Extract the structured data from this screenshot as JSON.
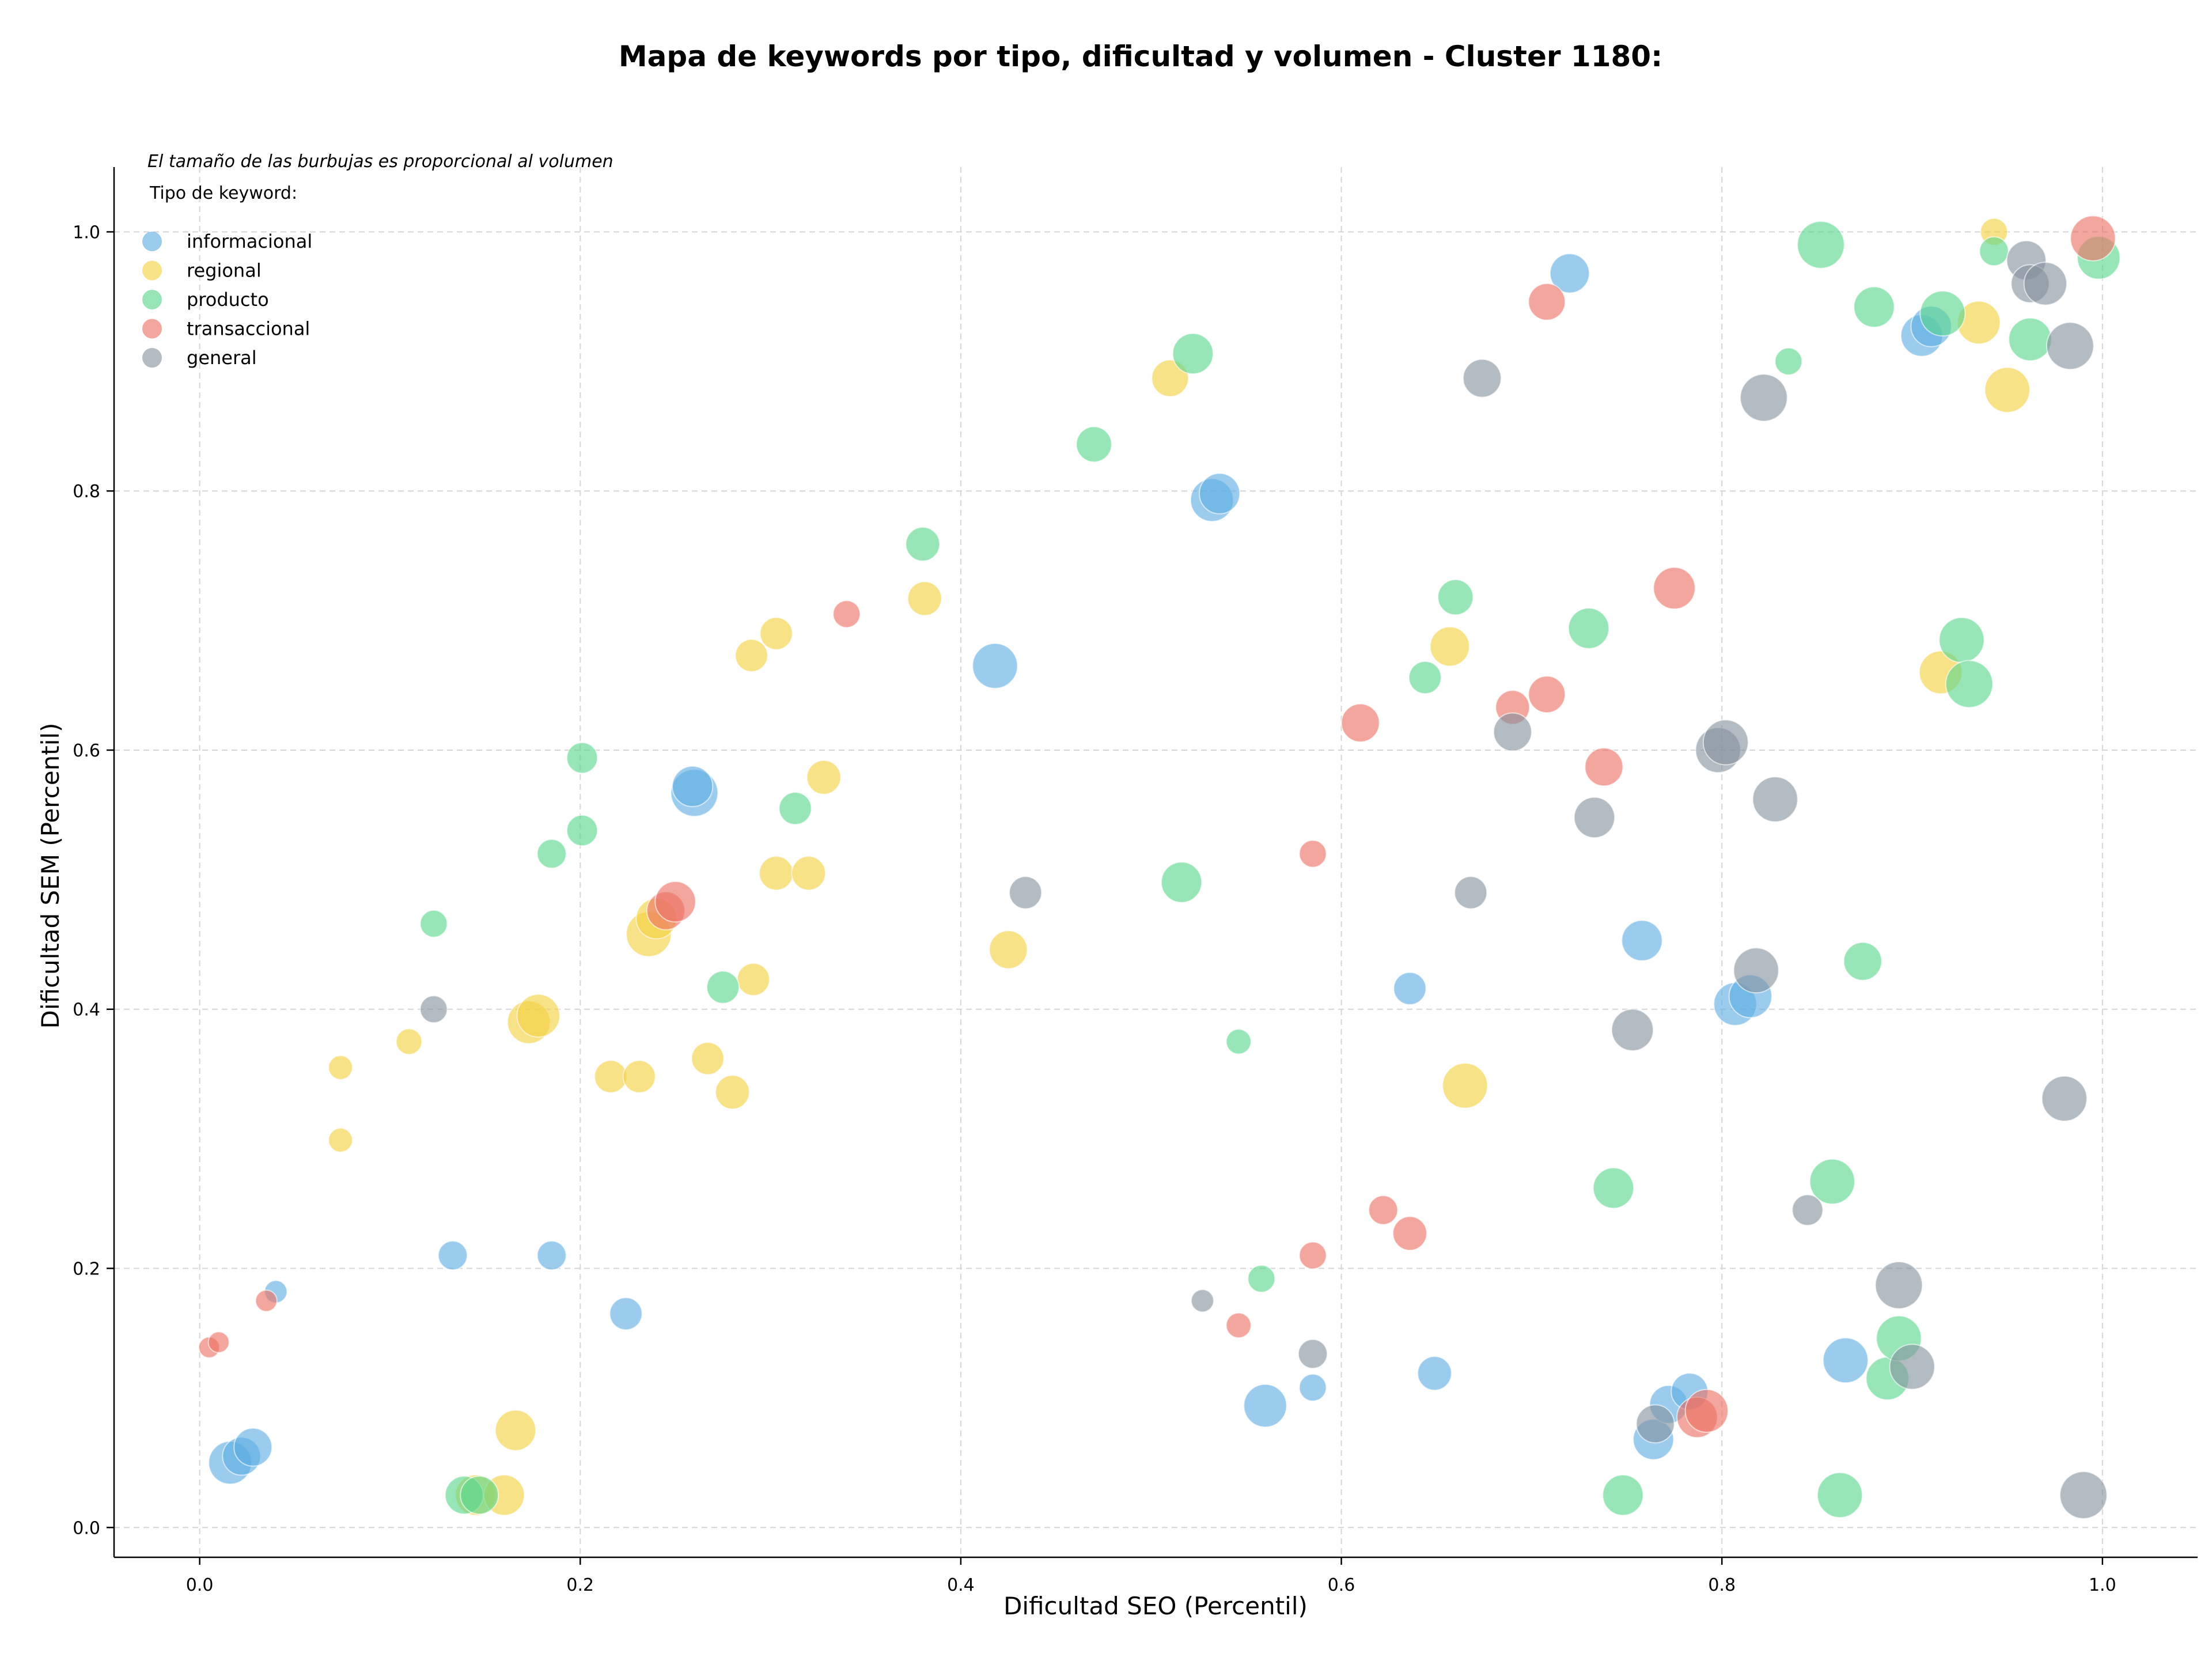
{
  "chart_data": {
    "type": "scatter",
    "title": "Mapa de keywords por tipo, dificultad y volumen - Cluster 1180:",
    "xlabel": "Dificultad SEO (Percentil)",
    "ylabel": "Dificultad SEM (Percentil)",
    "xlim": [
      -0.045,
      1.05
    ],
    "ylim": [
      -0.023,
      1.05
    ],
    "xticks": [
      "0.0",
      "0.2",
      "0.4",
      "0.6",
      "0.8",
      "1.0"
    ],
    "yticks": [
      "0.0",
      "0.2",
      "0.4",
      "0.6",
      "0.8",
      "1.0"
    ],
    "grid": true,
    "legend_placement": "top-left",
    "legend_note": "El tamaño de las burbujas es proporcional al volumen",
    "legend_title": "Tipo de keyword:",
    "series": [
      {
        "name": "informacional",
        "color": "#5dade2",
        "points": [
          {
            "x": 0.04,
            "y": 0.182,
            "v": 1.5
          },
          {
            "x": 0.016,
            "y": 0.05,
            "v": 8
          },
          {
            "x": 0.022,
            "y": 0.055,
            "v": 6
          },
          {
            "x": 0.028,
            "y": 0.062,
            "v": 6
          },
          {
            "x": 0.133,
            "y": 0.21,
            "v": 3
          },
          {
            "x": 0.185,
            "y": 0.21,
            "v": 3
          },
          {
            "x": 0.224,
            "y": 0.165,
            "v": 4
          },
          {
            "x": 0.26,
            "y": 0.567,
            "v": 10
          },
          {
            "x": 0.259,
            "y": 0.572,
            "v": 7
          },
          {
            "x": 0.418,
            "y": 0.665,
            "v": 9
          },
          {
            "x": 0.532,
            "y": 0.793,
            "v": 8
          },
          {
            "x": 0.536,
            "y": 0.798,
            "v": 7
          },
          {
            "x": 0.56,
            "y": 0.094,
            "v": 8
          },
          {
            "x": 0.585,
            "y": 0.108,
            "v": 2.5
          },
          {
            "x": 0.636,
            "y": 0.416,
            "v": 4
          },
          {
            "x": 0.649,
            "y": 0.119,
            "v": 4.5
          },
          {
            "x": 0.72,
            "y": 0.968,
            "v": 6.5
          },
          {
            "x": 0.758,
            "y": 0.453,
            "v": 7
          },
          {
            "x": 0.764,
            "y": 0.068,
            "v": 7
          },
          {
            "x": 0.772,
            "y": 0.095,
            "v": 6
          },
          {
            "x": 0.783,
            "y": 0.105,
            "v": 5.5
          },
          {
            "x": 0.807,
            "y": 0.404,
            "v": 8
          },
          {
            "x": 0.815,
            "y": 0.41,
            "v": 8
          },
          {
            "x": 0.865,
            "y": 0.129,
            "v": 9
          },
          {
            "x": 0.905,
            "y": 0.92,
            "v": 7.5
          },
          {
            "x": 0.91,
            "y": 0.927,
            "v": 7
          }
        ]
      },
      {
        "name": "regional",
        "color": "#f4d03f",
        "points": [
          {
            "x": 0.074,
            "y": 0.355,
            "v": 1.8
          },
          {
            "x": 0.074,
            "y": 0.299,
            "v": 1.8
          },
          {
            "x": 0.11,
            "y": 0.375,
            "v": 2.2
          },
          {
            "x": 0.145,
            "y": 0.025,
            "v": 7
          },
          {
            "x": 0.16,
            "y": 0.025,
            "v": 7
          },
          {
            "x": 0.166,
            "y": 0.075,
            "v": 7
          },
          {
            "x": 0.173,
            "y": 0.39,
            "v": 8
          },
          {
            "x": 0.178,
            "y": 0.395,
            "v": 8
          },
          {
            "x": 0.216,
            "y": 0.348,
            "v": 4
          },
          {
            "x": 0.231,
            "y": 0.348,
            "v": 4
          },
          {
            "x": 0.236,
            "y": 0.458,
            "v": 9
          },
          {
            "x": 0.24,
            "y": 0.47,
            "v": 7
          },
          {
            "x": 0.267,
            "y": 0.362,
            "v": 4
          },
          {
            "x": 0.28,
            "y": 0.336,
            "v": 4.5
          },
          {
            "x": 0.291,
            "y": 0.423,
            "v": 4
          },
          {
            "x": 0.29,
            "y": 0.673,
            "v": 4
          },
          {
            "x": 0.303,
            "y": 0.69,
            "v": 4
          },
          {
            "x": 0.303,
            "y": 0.505,
            "v": 4.5
          },
          {
            "x": 0.32,
            "y": 0.505,
            "v": 4.5
          },
          {
            "x": 0.328,
            "y": 0.579,
            "v": 4.5
          },
          {
            "x": 0.381,
            "y": 0.717,
            "v": 4.5
          },
          {
            "x": 0.425,
            "y": 0.446,
            "v": 6
          },
          {
            "x": 0.51,
            "y": 0.887,
            "v": 5.5
          },
          {
            "x": 0.657,
            "y": 0.68,
            "v": 6.5
          },
          {
            "x": 0.665,
            "y": 0.341,
            "v": 9
          },
          {
            "x": 0.915,
            "y": 0.66,
            "v": 8
          },
          {
            "x": 0.935,
            "y": 0.93,
            "v": 8
          },
          {
            "x": 0.943,
            "y": 1.0,
            "v": 2.5
          },
          {
            "x": 0.95,
            "y": 0.878,
            "v": 9
          }
        ]
      },
      {
        "name": "producto",
        "color": "#58d68d",
        "points": [
          {
            "x": 0.123,
            "y": 0.466,
            "v": 2.5
          },
          {
            "x": 0.139,
            "y": 0.025,
            "v": 6
          },
          {
            "x": 0.147,
            "y": 0.025,
            "v": 6
          },
          {
            "x": 0.185,
            "y": 0.52,
            "v": 3
          },
          {
            "x": 0.201,
            "y": 0.594,
            "v": 3.5
          },
          {
            "x": 0.201,
            "y": 0.538,
            "v": 3.5
          },
          {
            "x": 0.275,
            "y": 0.417,
            "v": 4
          },
          {
            "x": 0.313,
            "y": 0.555,
            "v": 4
          },
          {
            "x": 0.38,
            "y": 0.759,
            "v": 4.5
          },
          {
            "x": 0.47,
            "y": 0.836,
            "v": 5
          },
          {
            "x": 0.516,
            "y": 0.498,
            "v": 7
          },
          {
            "x": 0.522,
            "y": 0.906,
            "v": 7
          },
          {
            "x": 0.546,
            "y": 0.375,
            "v": 2
          },
          {
            "x": 0.558,
            "y": 0.192,
            "v": 2.5
          },
          {
            "x": 0.644,
            "y": 0.656,
            "v": 4
          },
          {
            "x": 0.66,
            "y": 0.718,
            "v": 5
          },
          {
            "x": 0.73,
            "y": 0.694,
            "v": 7
          },
          {
            "x": 0.743,
            "y": 0.262,
            "v": 7
          },
          {
            "x": 0.748,
            "y": 0.025,
            "v": 7
          },
          {
            "x": 0.835,
            "y": 0.9,
            "v": 2.5
          },
          {
            "x": 0.852,
            "y": 0.99,
            "v": 10
          },
          {
            "x": 0.858,
            "y": 0.267,
            "v": 9
          },
          {
            "x": 0.862,
            "y": 0.025,
            "v": 9
          },
          {
            "x": 0.874,
            "y": 0.437,
            "v": 6
          },
          {
            "x": 0.88,
            "y": 0.942,
            "v": 7
          },
          {
            "x": 0.887,
            "y": 0.115,
            "v": 8
          },
          {
            "x": 0.893,
            "y": 0.146,
            "v": 9
          },
          {
            "x": 0.916,
            "y": 0.937,
            "v": 9
          },
          {
            "x": 0.926,
            "y": 0.685,
            "v": 9
          },
          {
            "x": 0.93,
            "y": 0.651,
            "v": 10
          },
          {
            "x": 0.943,
            "y": 0.985,
            "v": 3
          },
          {
            "x": 0.962,
            "y": 0.917,
            "v": 8
          },
          {
            "x": 0.998,
            "y": 0.98,
            "v": 8
          }
        ]
      },
      {
        "name": "transaccional",
        "color": "#ec7063",
        "points": [
          {
            "x": 0.005,
            "y": 0.139,
            "v": 1.2
          },
          {
            "x": 0.01,
            "y": 0.143,
            "v": 1.2
          },
          {
            "x": 0.035,
            "y": 0.175,
            "v": 1.3
          },
          {
            "x": 0.245,
            "y": 0.476,
            "v": 6
          },
          {
            "x": 0.25,
            "y": 0.483,
            "v": 7
          },
          {
            "x": 0.34,
            "y": 0.705,
            "v": 2.5
          },
          {
            "x": 0.546,
            "y": 0.156,
            "v": 2
          },
          {
            "x": 0.585,
            "y": 0.52,
            "v": 2.5
          },
          {
            "x": 0.585,
            "y": 0.21,
            "v": 2.5
          },
          {
            "x": 0.61,
            "y": 0.621,
            "v": 6
          },
          {
            "x": 0.622,
            "y": 0.245,
            "v": 3
          },
          {
            "x": 0.636,
            "y": 0.227,
            "v": 4.5
          },
          {
            "x": 0.69,
            "y": 0.633,
            "v": 4.5
          },
          {
            "x": 0.708,
            "y": 0.643,
            "v": 5.5
          },
          {
            "x": 0.708,
            "y": 0.946,
            "v": 5.5
          },
          {
            "x": 0.738,
            "y": 0.587,
            "v": 6
          },
          {
            "x": 0.775,
            "y": 0.725,
            "v": 7.5
          },
          {
            "x": 0.787,
            "y": 0.085,
            "v": 7
          },
          {
            "x": 0.792,
            "y": 0.09,
            "v": 8
          },
          {
            "x": 0.995,
            "y": 0.995,
            "v": 9
          }
        ]
      },
      {
        "name": "general",
        "color": "#85929e",
        "points": [
          {
            "x": 0.123,
            "y": 0.4,
            "v": 2.5
          },
          {
            "x": 0.434,
            "y": 0.49,
            "v": 4
          },
          {
            "x": 0.527,
            "y": 0.175,
            "v": 1.5
          },
          {
            "x": 0.585,
            "y": 0.134,
            "v": 3
          },
          {
            "x": 0.668,
            "y": 0.49,
            "v": 4
          },
          {
            "x": 0.674,
            "y": 0.887,
            "v": 6
          },
          {
            "x": 0.69,
            "y": 0.614,
            "v": 6
          },
          {
            "x": 0.733,
            "y": 0.548,
            "v": 7
          },
          {
            "x": 0.753,
            "y": 0.384,
            "v": 7.5
          },
          {
            "x": 0.765,
            "y": 0.08,
            "v": 6
          },
          {
            "x": 0.798,
            "y": 0.6,
            "v": 9
          },
          {
            "x": 0.802,
            "y": 0.606,
            "v": 9
          },
          {
            "x": 0.818,
            "y": 0.43,
            "v": 9
          },
          {
            "x": 0.822,
            "y": 0.872,
            "v": 10
          },
          {
            "x": 0.828,
            "y": 0.562,
            "v": 9
          },
          {
            "x": 0.845,
            "y": 0.245,
            "v": 3.5
          },
          {
            "x": 0.893,
            "y": 0.187,
            "v": 10
          },
          {
            "x": 0.9,
            "y": 0.124,
            "v": 9
          },
          {
            "x": 0.96,
            "y": 0.978,
            "v": 6.5
          },
          {
            "x": 0.962,
            "y": 0.96,
            "v": 6
          },
          {
            "x": 0.97,
            "y": 0.96,
            "v": 8
          },
          {
            "x": 0.98,
            "y": 0.331,
            "v": 9
          },
          {
            "x": 0.983,
            "y": 0.912,
            "v": 10
          },
          {
            "x": 0.99,
            "y": 0.025,
            "v": 10
          }
        ]
      }
    ]
  }
}
